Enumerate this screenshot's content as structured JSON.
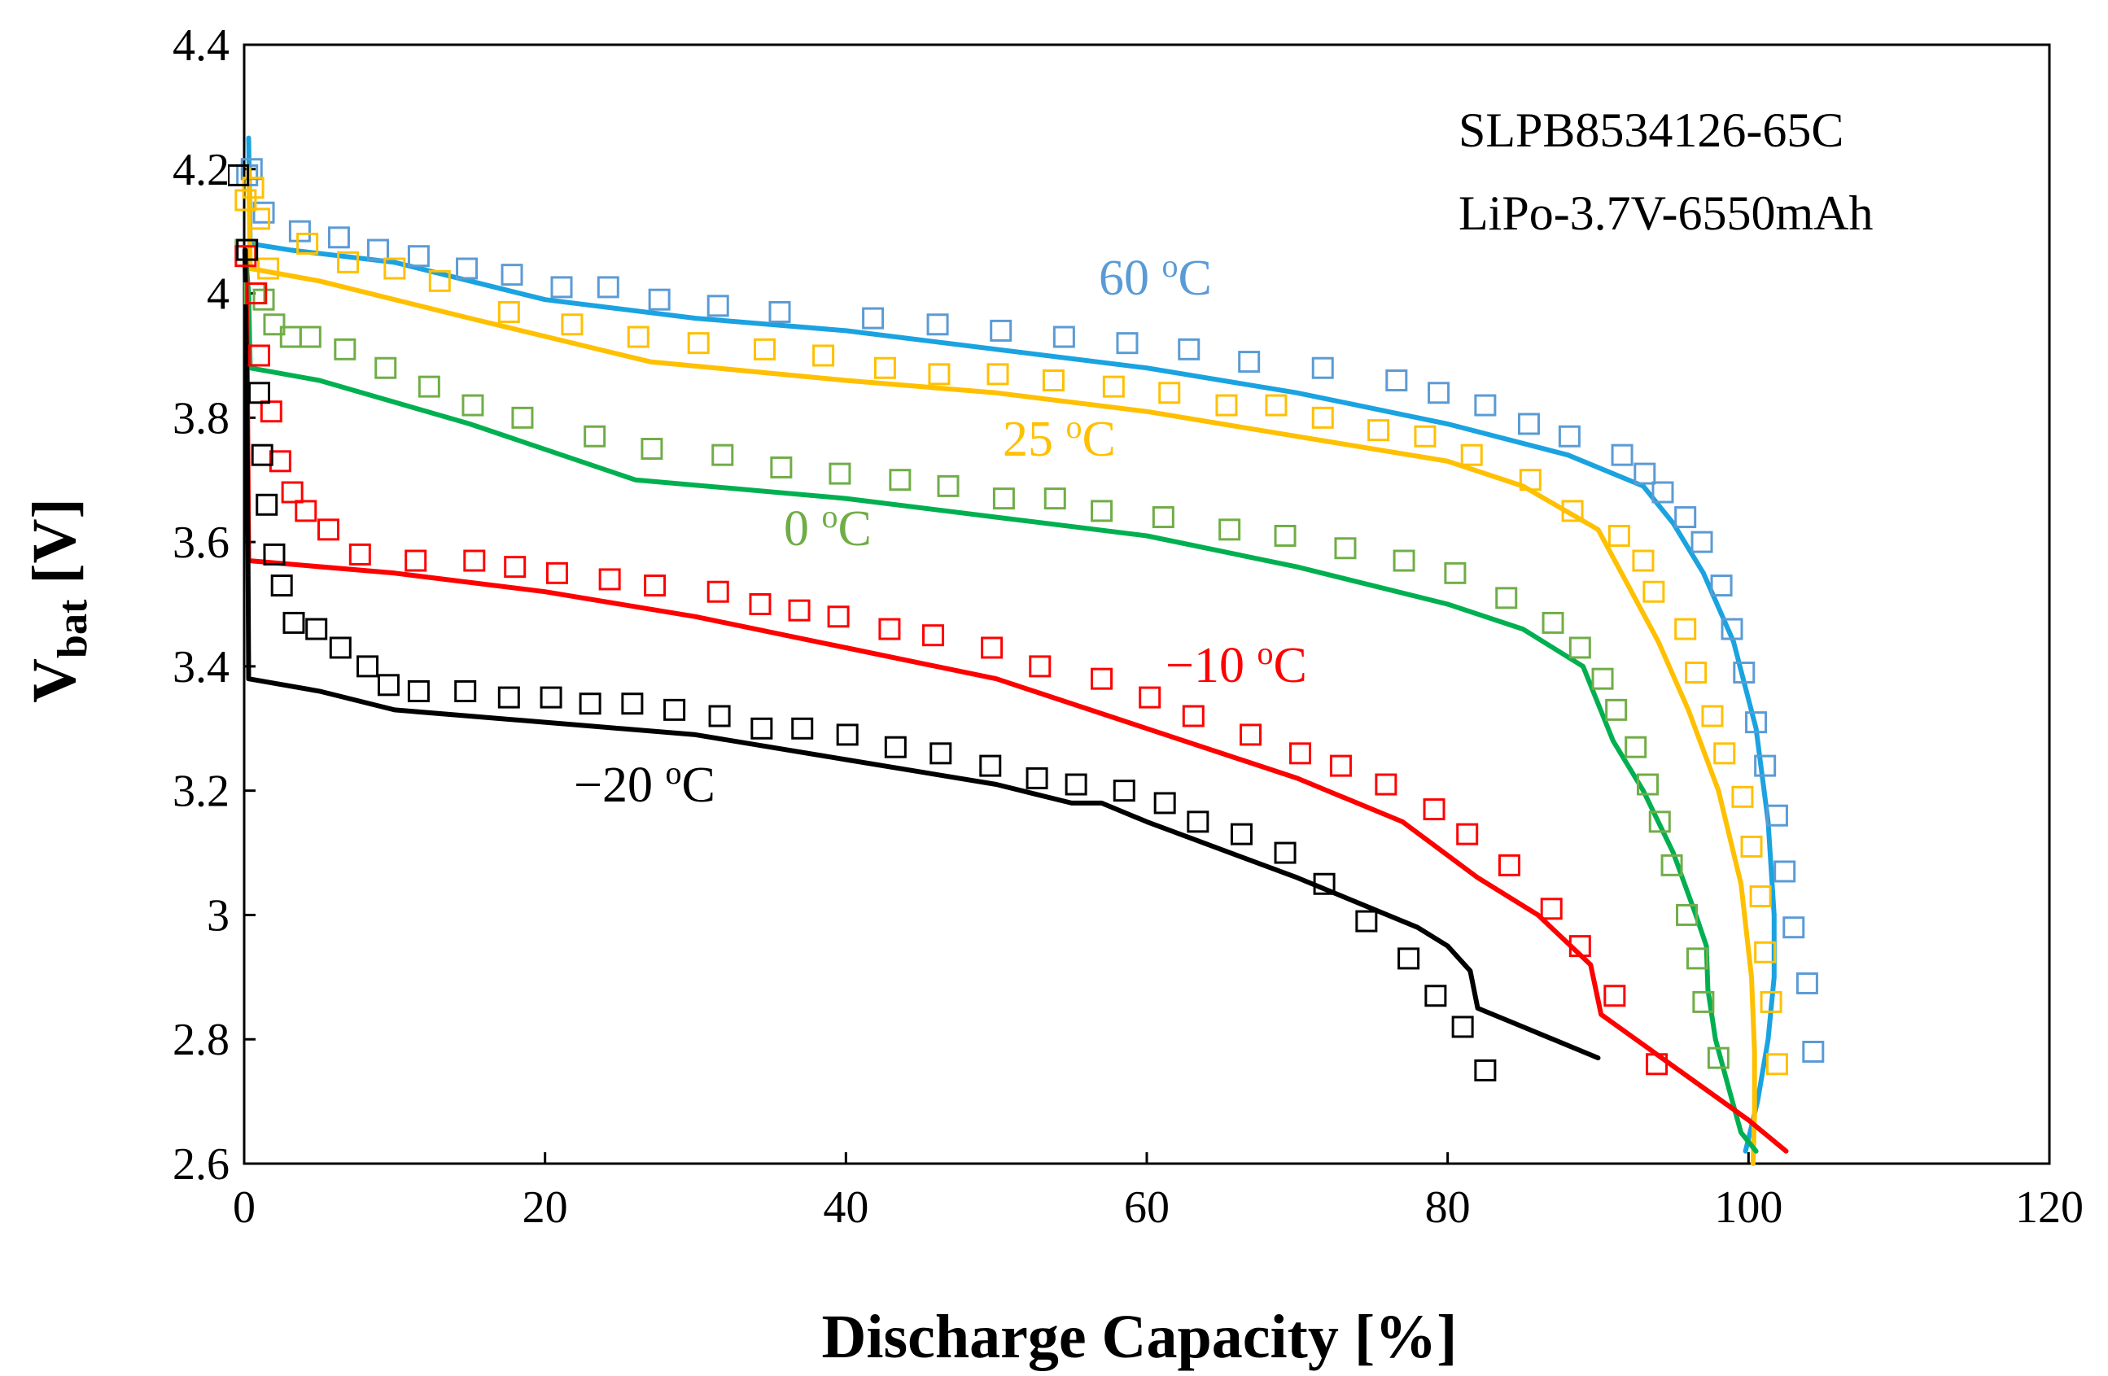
{
  "chart_data": {
    "type": "scatter",
    "title": "",
    "xlabel": "Discharge Capacity [%]",
    "ylabel_main": "V",
    "ylabel_sub": "bat",
    "ylabel_unit": " [V]",
    "xlim": [
      0,
      120
    ],
    "ylim": [
      2.6,
      4.4
    ],
    "x_ticks": [
      "0",
      "20",
      "40",
      "60",
      "80",
      "100",
      "120"
    ],
    "y_ticks": [
      "2.6",
      "2.8",
      "3",
      "3.2",
      "3.4",
      "3.6",
      "3.8",
      "4",
      "4.2",
      "4.4"
    ],
    "grid": false,
    "annotations": [
      "SLPB8534126-65C",
      "LiPo-3.7V-6550mAh"
    ],
    "series": [
      {
        "name": "60 oC",
        "label_main": "60 ",
        "label_sup": "o",
        "label_tail": "C",
        "color": "#1aa3e0",
        "marker_color": "#5b9bd5",
        "line": [
          [
            0.3,
            4.25
          ],
          [
            0.4,
            4.08
          ],
          [
            3,
            4.07
          ],
          [
            10,
            4.05
          ],
          [
            20,
            3.99
          ],
          [
            30,
            3.96
          ],
          [
            40,
            3.94
          ],
          [
            50,
            3.91
          ],
          [
            60,
            3.88
          ],
          [
            70,
            3.84
          ],
          [
            80,
            3.79
          ],
          [
            88,
            3.74
          ],
          [
            93,
            3.69
          ],
          [
            95,
            3.63
          ],
          [
            97,
            3.55
          ],
          [
            99,
            3.44
          ],
          [
            100.5,
            3.3
          ],
          [
            101.3,
            3.15
          ],
          [
            101.7,
            3.0
          ],
          [
            101.7,
            2.9
          ],
          [
            101.3,
            2.8
          ],
          [
            100.6,
            2.7
          ],
          [
            99.8,
            2.62
          ]
        ],
        "markers": [
          [
            0.2,
            4.19
          ],
          [
            0.5,
            4.2
          ],
          [
            1.3,
            4.13
          ],
          [
            3.7,
            4.1
          ],
          [
            6.3,
            4.09
          ],
          [
            8.9,
            4.07
          ],
          [
            11.6,
            4.06
          ],
          [
            14.8,
            4.04
          ],
          [
            17.8,
            4.03
          ],
          [
            21.1,
            4.01
          ],
          [
            24.2,
            4.01
          ],
          [
            27.6,
            3.99
          ],
          [
            31.5,
            3.98
          ],
          [
            35.6,
            3.97
          ],
          [
            41.8,
            3.96
          ],
          [
            46.1,
            3.95
          ],
          [
            50.3,
            3.94
          ],
          [
            54.5,
            3.93
          ],
          [
            58.7,
            3.92
          ],
          [
            62.8,
            3.91
          ],
          [
            66.8,
            3.89
          ],
          [
            71.7,
            3.88
          ],
          [
            76.6,
            3.86
          ],
          [
            79.4,
            3.84
          ],
          [
            82.5,
            3.82
          ],
          [
            85.4,
            3.79
          ],
          [
            88.1,
            3.77
          ],
          [
            91.6,
            3.74
          ],
          [
            93.1,
            3.71
          ],
          [
            94.3,
            3.68
          ],
          [
            95.8,
            3.64
          ],
          [
            96.9,
            3.6
          ],
          [
            98.2,
            3.53
          ],
          [
            98.9,
            3.46
          ],
          [
            99.7,
            3.39
          ],
          [
            100.5,
            3.31
          ],
          [
            101.1,
            3.24
          ],
          [
            101.9,
            3.16
          ],
          [
            102.4,
            3.07
          ],
          [
            103.0,
            2.98
          ],
          [
            103.9,
            2.89
          ],
          [
            104.3,
            2.78
          ]
        ]
      },
      {
        "name": "25 oC",
        "label_main": "25 ",
        "label_sup": "o",
        "label_tail": "C",
        "color": "#ffc000",
        "marker_color": "#ffc000",
        "line": [
          [
            0.3,
            4.2
          ],
          [
            0.4,
            4.04
          ],
          [
            5,
            4.02
          ],
          [
            15,
            3.96
          ],
          [
            27,
            3.89
          ],
          [
            40,
            3.86
          ],
          [
            50,
            3.84
          ],
          [
            60,
            3.81
          ],
          [
            70,
            3.77
          ],
          [
            80,
            3.73
          ],
          [
            85,
            3.69
          ],
          [
            90,
            3.62
          ],
          [
            92,
            3.53
          ],
          [
            94,
            3.44
          ],
          [
            96,
            3.33
          ],
          [
            98,
            3.2
          ],
          [
            99.5,
            3.05
          ],
          [
            100.2,
            2.9
          ],
          [
            100.4,
            2.78
          ],
          [
            100.4,
            2.68
          ],
          [
            100.3,
            2.6
          ]
        ],
        "markers": [
          [
            0.1,
            4.15
          ],
          [
            0.6,
            4.17
          ],
          [
            1.0,
            4.12
          ],
          [
            1.6,
            4.04
          ],
          [
            4.2,
            4.08
          ],
          [
            6.9,
            4.05
          ],
          [
            10.0,
            4.04
          ],
          [
            13.0,
            4.02
          ],
          [
            17.6,
            3.97
          ],
          [
            21.8,
            3.95
          ],
          [
            26.2,
            3.93
          ],
          [
            30.2,
            3.92
          ],
          [
            34.6,
            3.91
          ],
          [
            38.5,
            3.9
          ],
          [
            42.6,
            3.88
          ],
          [
            46.2,
            3.87
          ],
          [
            50.1,
            3.87
          ],
          [
            53.8,
            3.86
          ],
          [
            57.8,
            3.85
          ],
          [
            61.5,
            3.84
          ],
          [
            65.3,
            3.82
          ],
          [
            68.6,
            3.82
          ],
          [
            71.7,
            3.8
          ],
          [
            75.4,
            3.78
          ],
          [
            78.5,
            3.77
          ],
          [
            81.6,
            3.74
          ],
          [
            85.5,
            3.7
          ],
          [
            88.3,
            3.65
          ],
          [
            91.4,
            3.61
          ],
          [
            93.0,
            3.57
          ],
          [
            93.7,
            3.52
          ],
          [
            95.8,
            3.46
          ],
          [
            96.5,
            3.39
          ],
          [
            97.6,
            3.32
          ],
          [
            98.4,
            3.26
          ],
          [
            99.6,
            3.19
          ],
          [
            100.2,
            3.11
          ],
          [
            100.8,
            3.03
          ],
          [
            101.1,
            2.94
          ],
          [
            101.5,
            2.86
          ],
          [
            101.9,
            2.76
          ]
        ]
      },
      {
        "name": "0 oC",
        "label_main": "0 ",
        "label_sup": "o",
        "label_tail": "C",
        "color": "#00b050",
        "marker_color": "#70ad47",
        "line": [
          [
            0.1,
            4.06
          ],
          [
            0.3,
            4.0
          ],
          [
            0.4,
            3.88
          ],
          [
            5,
            3.86
          ],
          [
            15,
            3.79
          ],
          [
            26,
            3.7
          ],
          [
            40,
            3.67
          ],
          [
            50,
            3.64
          ],
          [
            60,
            3.61
          ],
          [
            70,
            3.56
          ],
          [
            80,
            3.5
          ],
          [
            85,
            3.46
          ],
          [
            89,
            3.4
          ],
          [
            91,
            3.28
          ],
          [
            93,
            3.2
          ],
          [
            95,
            3.1
          ],
          [
            96.5,
            3.0
          ],
          [
            97.2,
            2.95
          ],
          [
            97.3,
            2.88
          ],
          [
            97.8,
            2.8
          ],
          [
            98.7,
            2.72
          ],
          [
            99.5,
            2.65
          ],
          [
            100.5,
            2.62
          ]
        ],
        "markers": [
          [
            0.1,
            4.07
          ],
          [
            0.7,
            4.0
          ],
          [
            1.3,
            3.99
          ],
          [
            2.0,
            3.95
          ],
          [
            3.1,
            3.93
          ],
          [
            4.4,
            3.93
          ],
          [
            6.7,
            3.91
          ],
          [
            9.4,
            3.88
          ],
          [
            12.3,
            3.85
          ],
          [
            15.2,
            3.82
          ],
          [
            18.5,
            3.8
          ],
          [
            23.3,
            3.77
          ],
          [
            27.1,
            3.75
          ],
          [
            31.8,
            3.74
          ],
          [
            35.7,
            3.72
          ],
          [
            39.6,
            3.71
          ],
          [
            43.6,
            3.7
          ],
          [
            46.8,
            3.69
          ],
          [
            50.5,
            3.67
          ],
          [
            53.9,
            3.67
          ],
          [
            57.0,
            3.65
          ],
          [
            61.1,
            3.64
          ],
          [
            65.5,
            3.62
          ],
          [
            69.2,
            3.61
          ],
          [
            73.2,
            3.59
          ],
          [
            77.1,
            3.57
          ],
          [
            80.5,
            3.55
          ],
          [
            83.9,
            3.51
          ],
          [
            87.0,
            3.47
          ],
          [
            88.8,
            3.43
          ],
          [
            90.3,
            3.38
          ],
          [
            91.2,
            3.33
          ],
          [
            92.5,
            3.27
          ],
          [
            93.3,
            3.21
          ],
          [
            94.1,
            3.15
          ],
          [
            94.9,
            3.08
          ],
          [
            95.9,
            3.0
          ],
          [
            96.6,
            2.93
          ],
          [
            97.0,
            2.86
          ],
          [
            98.0,
            2.77
          ]
        ]
      },
      {
        "name": "−10 oC",
        "label_main": "−10 ",
        "label_sup": "o",
        "label_tail": "C",
        "color": "#ff0000",
        "marker_color": "#ff0000",
        "line": [
          [
            0.1,
            4.07
          ],
          [
            0.2,
            3.9
          ],
          [
            0.3,
            3.57
          ],
          [
            10,
            3.55
          ],
          [
            20,
            3.52
          ],
          [
            30,
            3.48
          ],
          [
            40,
            3.43
          ],
          [
            50,
            3.38
          ],
          [
            60,
            3.3
          ],
          [
            70,
            3.22
          ],
          [
            77,
            3.15
          ],
          [
            82,
            3.06
          ],
          [
            86,
            3.0
          ],
          [
            89.5,
            2.92
          ],
          [
            90.2,
            2.84
          ],
          [
            100,
            2.67
          ],
          [
            102.5,
            2.62
          ]
        ],
        "markers": [
          [
            0.1,
            4.06
          ],
          [
            0.8,
            4.0
          ],
          [
            1.0,
            3.9
          ],
          [
            1.8,
            3.81
          ],
          [
            2.4,
            3.73
          ],
          [
            3.2,
            3.68
          ],
          [
            4.1,
            3.65
          ],
          [
            5.6,
            3.62
          ],
          [
            7.7,
            3.58
          ],
          [
            11.4,
            3.57
          ],
          [
            15.3,
            3.57
          ],
          [
            18.0,
            3.56
          ],
          [
            20.8,
            3.55
          ],
          [
            24.3,
            3.54
          ],
          [
            27.3,
            3.53
          ],
          [
            31.5,
            3.52
          ],
          [
            34.3,
            3.5
          ],
          [
            36.9,
            3.49
          ],
          [
            39.5,
            3.48
          ],
          [
            42.9,
            3.46
          ],
          [
            45.8,
            3.45
          ],
          [
            49.7,
            3.43
          ],
          [
            52.9,
            3.4
          ],
          [
            57.0,
            3.38
          ],
          [
            60.2,
            3.35
          ],
          [
            63.1,
            3.32
          ],
          [
            66.9,
            3.29
          ],
          [
            70.2,
            3.26
          ],
          [
            72.9,
            3.24
          ],
          [
            75.9,
            3.21
          ],
          [
            79.1,
            3.17
          ],
          [
            81.3,
            3.13
          ],
          [
            84.1,
            3.08
          ],
          [
            86.9,
            3.01
          ],
          [
            88.8,
            2.95
          ],
          [
            91.1,
            2.87
          ],
          [
            93.9,
            2.76
          ]
        ]
      },
      {
        "name": "−20 oC",
        "label_main": "−20 ",
        "label_sup": "o",
        "label_tail": "C",
        "color": "#000000",
        "marker_color": "#000000",
        "line": [
          [
            0.05,
            4.07
          ],
          [
            0.15,
            3.9
          ],
          [
            0.25,
            3.6
          ],
          [
            0.3,
            3.38
          ],
          [
            5,
            3.36
          ],
          [
            10,
            3.33
          ],
          [
            20,
            3.31
          ],
          [
            30,
            3.29
          ],
          [
            40,
            3.25
          ],
          [
            50,
            3.21
          ],
          [
            55,
            3.18
          ],
          [
            57,
            3.18
          ],
          [
            60,
            3.15
          ],
          [
            70,
            3.06
          ],
          [
            78,
            2.98
          ],
          [
            80,
            2.95
          ],
          [
            81.5,
            2.91
          ],
          [
            82,
            2.85
          ],
          [
            85,
            2.82
          ],
          [
            90,
            2.77
          ]
        ],
        "markers": [
          [
            -0.4,
            4.19
          ],
          [
            0.2,
            4.07
          ],
          [
            1.0,
            3.84
          ],
          [
            1.2,
            3.74
          ],
          [
            1.5,
            3.66
          ],
          [
            2.0,
            3.58
          ],
          [
            2.5,
            3.53
          ],
          [
            3.3,
            3.47
          ],
          [
            4.8,
            3.46
          ],
          [
            6.4,
            3.43
          ],
          [
            8.2,
            3.4
          ],
          [
            9.6,
            3.37
          ],
          [
            11.6,
            3.36
          ],
          [
            14.7,
            3.36
          ],
          [
            17.6,
            3.35
          ],
          [
            20.4,
            3.35
          ],
          [
            23.0,
            3.34
          ],
          [
            25.8,
            3.34
          ],
          [
            28.6,
            3.33
          ],
          [
            31.6,
            3.32
          ],
          [
            34.4,
            3.3
          ],
          [
            37.1,
            3.3
          ],
          [
            40.1,
            3.29
          ],
          [
            43.3,
            3.27
          ],
          [
            46.3,
            3.26
          ],
          [
            49.6,
            3.24
          ],
          [
            52.7,
            3.22
          ],
          [
            55.3,
            3.21
          ],
          [
            58.5,
            3.2
          ],
          [
            61.2,
            3.18
          ],
          [
            63.4,
            3.15
          ],
          [
            66.3,
            3.13
          ],
          [
            69.2,
            3.1
          ],
          [
            71.8,
            3.05
          ],
          [
            74.6,
            2.99
          ],
          [
            77.4,
            2.93
          ],
          [
            79.2,
            2.87
          ],
          [
            81.0,
            2.82
          ],
          [
            82.5,
            2.75
          ]
        ]
      }
    ]
  }
}
